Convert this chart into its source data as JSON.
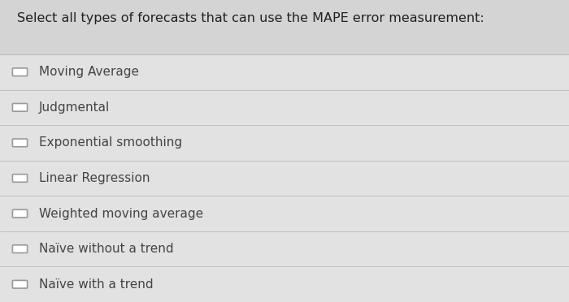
{
  "title": "Select all types of forecasts that can use the MAPE error measurement:",
  "options": [
    "Moving Average",
    "Judgmental",
    "Exponential smoothing",
    "Linear Regression",
    "Weighted moving average",
    "Naïve without a trend",
    "Naïve with a trend"
  ],
  "background_color": "#d4d4d4",
  "row_bg_color": "#e2e2e2",
  "title_color": "#222222",
  "option_color": "#444444",
  "checkbox_color": "#999999",
  "title_fontsize": 11.5,
  "option_fontsize": 11.0,
  "divider_color": "#bbbbbb",
  "figsize": [
    7.0,
    3.72
  ],
  "dpi": 100
}
